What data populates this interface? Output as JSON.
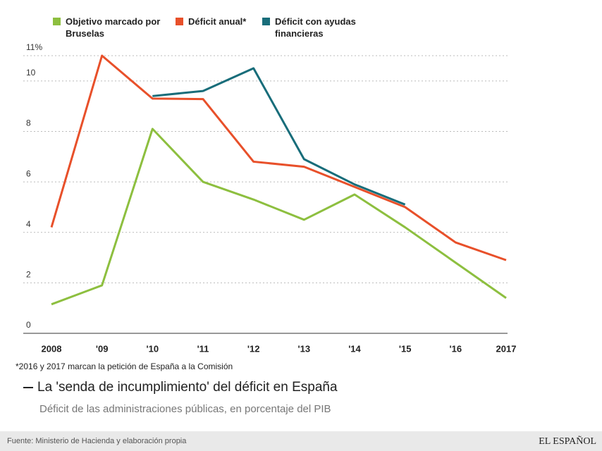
{
  "chart_data": {
    "type": "line",
    "title": "La 'senda de incumplimiento' del déficit en España",
    "subtitle": "Déficit de las administraciones públicas, en porcentaje del PIB",
    "footnote": "*2016 y 2017 marcan la petición de España a la Comisión",
    "source": "Fuente: Ministerio de Hacienda y elaboración propia",
    "brand": "EL ESPAÑOL",
    "categories": [
      "2008",
      "'09",
      "'10",
      "'11",
      "'12",
      "'13",
      "'14",
      "'15",
      "'16",
      "2017"
    ],
    "series": [
      {
        "name": "Objetivo marcado por Bruselas",
        "color": "#8dbf3f",
        "values": [
          1.15,
          1.9,
          8.1,
          6.0,
          5.3,
          4.5,
          5.5,
          4.2,
          2.8,
          1.4
        ]
      },
      {
        "name": "Déficit anual*",
        "color": "#e8502a",
        "values": [
          4.2,
          11.0,
          9.3,
          9.28,
          6.8,
          6.6,
          5.8,
          5.0,
          3.6,
          2.9
        ]
      },
      {
        "name": "Déficit con ayudas financieras",
        "color": "#186d7a",
        "values": [
          null,
          null,
          9.4,
          9.6,
          10.5,
          6.9,
          5.9,
          5.1,
          null,
          null
        ]
      }
    ],
    "ylim": [
      0,
      11
    ],
    "yticks": [
      0,
      2,
      4,
      6,
      8,
      10,
      {
        "value": 11,
        "label": "11%"
      }
    ],
    "grid": true
  }
}
